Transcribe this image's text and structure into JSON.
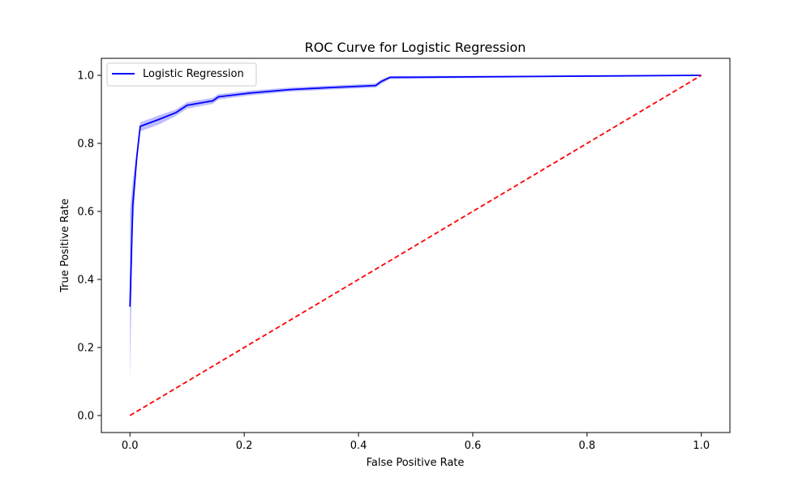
{
  "chart_data": {
    "type": "line",
    "title": "ROC Curve for Logistic Regression",
    "xlabel": "False Positive Rate",
    "ylabel": "True Positive Rate",
    "xlim": [
      -0.05,
      1.05
    ],
    "ylim": [
      -0.05,
      1.05
    ],
    "xticks": [
      0.0,
      0.2,
      0.4,
      0.6,
      0.8,
      1.0
    ],
    "xtick_labels": [
      "0.0",
      "0.2",
      "0.4",
      "0.6",
      "0.8",
      "1.0"
    ],
    "yticks": [
      0.0,
      0.2,
      0.4,
      0.6,
      0.8,
      1.0
    ],
    "ytick_labels": [
      "0.0",
      "0.2",
      "0.4",
      "0.6",
      "0.8",
      "1.0"
    ],
    "grid": false,
    "legend": {
      "position": "top-left",
      "entries": [
        "Logistic Regression"
      ]
    },
    "series": [
      {
        "name": "Logistic Regression",
        "color": "#0000ff",
        "style": "solid",
        "x": [
          0.0,
          0.005,
          0.012,
          0.018,
          0.05,
          0.08,
          0.1,
          0.145,
          0.155,
          0.21,
          0.28,
          0.35,
          0.43,
          0.44,
          0.455,
          1.0
        ],
        "y": [
          0.32,
          0.62,
          0.76,
          0.85,
          0.87,
          0.89,
          0.912,
          0.925,
          0.937,
          0.948,
          0.958,
          0.964,
          0.97,
          0.982,
          0.994,
          1.0
        ],
        "band_lower": [
          0.1,
          0.55,
          0.74,
          0.835,
          0.855,
          0.88,
          0.902,
          0.916,
          0.929,
          0.941,
          0.952,
          0.958,
          0.964,
          0.975,
          0.989,
          1.0
        ],
        "band_upper": [
          0.6,
          0.69,
          0.78,
          0.862,
          0.882,
          0.899,
          0.921,
          0.934,
          0.945,
          0.955,
          0.964,
          0.97,
          0.976,
          0.988,
          0.998,
          1.0
        ],
        "band_color": "#b3b3ff"
      },
      {
        "color": "#ff0000",
        "style": "dashed",
        "x": [
          0.0,
          1.0
        ],
        "y": [
          0.0,
          1.0
        ]
      }
    ]
  }
}
